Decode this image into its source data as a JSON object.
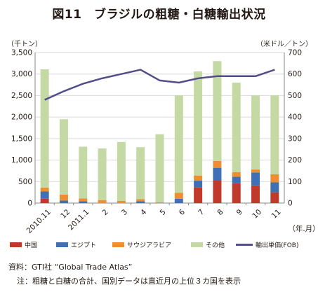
{
  "title": "図11　ブラジルの粗糖・白糖輸出状況",
  "left_unit": "（千トン）",
  "right_unit": "（米ドル／トン）",
  "x_unit": "（年.月）",
  "source": "資料：GTI社 “Global Trade Atlas”",
  "note": "注：粗糖と白糖の合計、国別データは直近月の上位３カ国を表示",
  "colors": {
    "china": "#c0392b",
    "egypt": "#3f6fb5",
    "saudi": "#ef8e2f",
    "other": "#c5d9a4",
    "price": "#534d89"
  },
  "chart_data": {
    "type": "bar",
    "categories": [
      "2010.11",
      "12",
      "2011.1",
      "2",
      "3",
      "4",
      "5",
      "6",
      "7",
      "8",
      "9",
      "10",
      "11"
    ],
    "series": [
      {
        "name": "中国",
        "values": [
          100,
          0,
          0,
          0,
          0,
          0,
          0,
          0,
          360,
          530,
          460,
          410,
          250
        ]
      },
      {
        "name": "エジプト",
        "values": [
          170,
          60,
          40,
          0,
          0,
          40,
          0,
          100,
          160,
          290,
          150,
          300,
          230
        ]
      },
      {
        "name": "サウジアラビア",
        "values": [
          90,
          140,
          70,
          70,
          50,
          50,
          20,
          140,
          120,
          160,
          110,
          70,
          190
        ]
      },
      {
        "name": "その他",
        "values": [
          2750,
          1750,
          1200,
          1200,
          1370,
          1210,
          1580,
          2260,
          2420,
          2320,
          2080,
          1720,
          1830
        ]
      }
    ],
    "line_series": {
      "name": "輸出単価(FOB)",
      "values": [
        480,
        520,
        555,
        580,
        600,
        620,
        570,
        560,
        580,
        590,
        590,
        590,
        620
      ]
    },
    "ylim": [
      0,
      3500
    ],
    "y_ticks": [
      "0",
      "500",
      "1,000",
      "1,500",
      "2,000",
      "2,500",
      "3,000",
      "3,500"
    ],
    "y2lim": [
      0,
      700
    ],
    "y2_ticks": [
      "0",
      "100",
      "200",
      "300",
      "400",
      "500",
      "600",
      "700"
    ],
    "grid": true,
    "legend": "bottom"
  }
}
